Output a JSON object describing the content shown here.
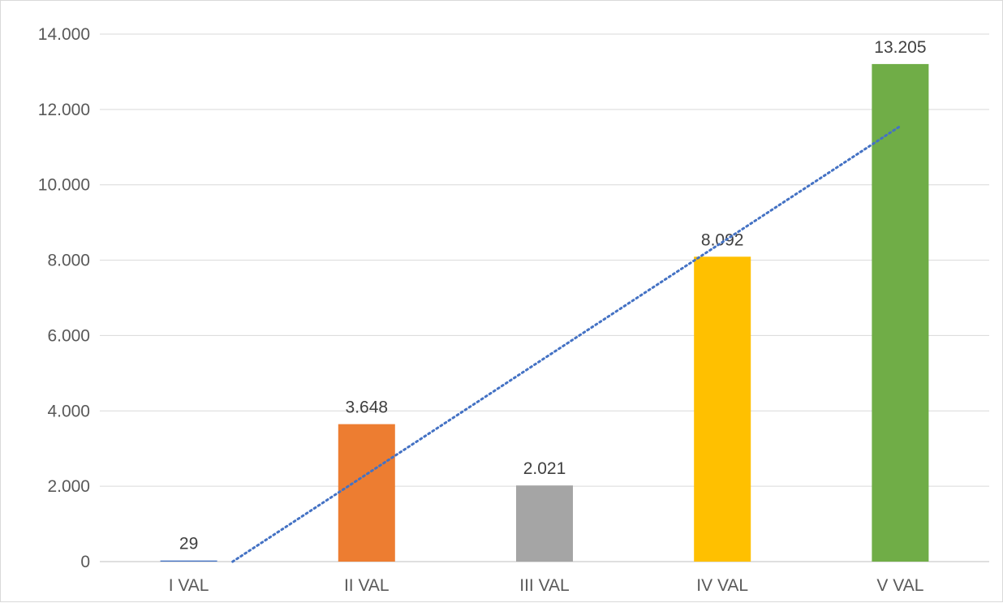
{
  "chart_data": {
    "type": "bar",
    "title": "",
    "xlabel": "",
    "ylabel": "",
    "categories": [
      "I VAL",
      "II VAL",
      "III VAL",
      "IV VAL",
      "V VAL"
    ],
    "values": [
      29,
      3648,
      2021,
      8092,
      13205
    ],
    "value_labels": [
      "29",
      "3.648",
      "2.021",
      "8.092",
      "13.205"
    ],
    "bar_colors": [
      "#4472c4",
      "#ed7d31",
      "#a5a5a5",
      "#ffc000",
      "#70ad47"
    ],
    "ylim": [
      0,
      14000
    ],
    "yticks": [
      0,
      2000,
      4000,
      6000,
      8000,
      10000,
      12000,
      14000
    ],
    "ytick_labels": [
      "0",
      "2.000",
      "4.000",
      "6.000",
      "8.000",
      "10.000",
      "12.000",
      "14.000"
    ],
    "grid": true,
    "legend": "none",
    "trendline": {
      "type": "linear",
      "style": "dotted",
      "color": "#4472c4"
    }
  }
}
